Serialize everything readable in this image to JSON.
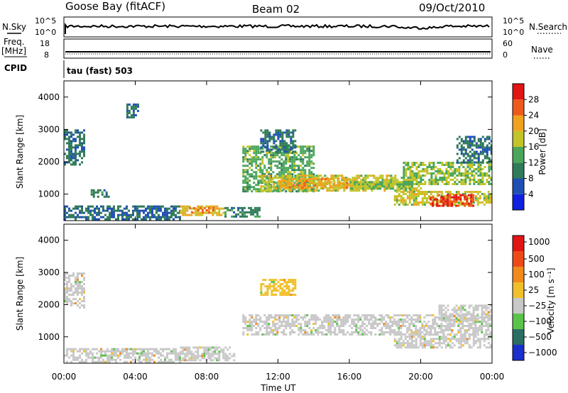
{
  "header": {
    "station": "Goose Bay (fitACF)",
    "beam": "Beam 02",
    "date": "09/Oct/2010"
  },
  "top_panels": {
    "nsky_label": "N.Sky",
    "nsky_ticks": [
      "10^5",
      "10^0"
    ],
    "nsearch_label": "N.Search",
    "nsearch_ticks": [
      "10^5",
      "10^0"
    ],
    "freq_label_1": "Freq.",
    "freq_label_2": "[MHz]",
    "freq_ticks": [
      "18",
      "8"
    ],
    "nave_label": "Nave",
    "nave_ticks": [
      "60",
      "0"
    ],
    "cpid_label": "CPID",
    "cpid_value": "tau (fast) 503"
  },
  "chart_data": [
    {
      "type": "heatmap",
      "quantity": "Power",
      "ylabel": "Slant Range [km]",
      "y_ticks": [
        "1000",
        "2000",
        "3000",
        "4000"
      ],
      "ylim": [
        180,
        4500
      ],
      "xlim": [
        0,
        24
      ],
      "colorbar": {
        "label": "Power [dB]",
        "ticks": [
          "4",
          "8",
          "12",
          "16",
          "20",
          "24",
          "28"
        ],
        "range": [
          0,
          32
        ],
        "colors": [
          "#1020e0",
          "#1e4fb4",
          "#2f7a58",
          "#49a65a",
          "#c2c428",
          "#f0a21e",
          "#ee5a1c",
          "#e21414"
        ]
      },
      "regions": [
        {
          "t": [
            0.0,
            1.1
          ],
          "r": [
            1900,
            3000
          ],
          "level": 9
        },
        {
          "t": [
            1.5,
            2.5
          ],
          "r": [
            950,
            1150
          ],
          "level": 10
        },
        {
          "t": [
            3.5,
            4.2
          ],
          "r": [
            3400,
            3800
          ],
          "level": 8
        },
        {
          "t": [
            0.0,
            6.5
          ],
          "r": [
            200,
            650
          ],
          "level": 8
        },
        {
          "t": [
            6.5,
            9.0
          ],
          "r": [
            350,
            650
          ],
          "level": 20
        },
        {
          "t": [
            7.0,
            8.5
          ],
          "r": [
            450,
            600
          ],
          "level": 26
        },
        {
          "t": [
            9.0,
            11.0
          ],
          "r": [
            300,
            600
          ],
          "level": 10
        },
        {
          "t": [
            10.0,
            14.0
          ],
          "r": [
            1100,
            2500
          ],
          "level": 14
        },
        {
          "t": [
            11.0,
            20.0
          ],
          "r": [
            1100,
            1600
          ],
          "level": 18
        },
        {
          "t": [
            12.0,
            16.0
          ],
          "r": [
            1200,
            1500
          ],
          "level": 22
        },
        {
          "t": [
            16.0,
            19.5
          ],
          "r": [
            1200,
            1400
          ],
          "level": 16
        },
        {
          "t": [
            19.0,
            24.0
          ],
          "r": [
            1300,
            2000
          ],
          "level": 16
        },
        {
          "t": [
            18.5,
            24.0
          ],
          "r": [
            700,
            1100
          ],
          "level": 18
        },
        {
          "t": [
            20.5,
            23.0
          ],
          "r": [
            650,
            1000
          ],
          "level": 28
        },
        {
          "t": [
            22.0,
            24.0
          ],
          "r": [
            2000,
            2800
          ],
          "level": 9
        },
        {
          "t": [
            11.0,
            13.0
          ],
          "r": [
            2300,
            3000
          ],
          "level": 9
        }
      ]
    },
    {
      "type": "heatmap",
      "quantity": "Velocity",
      "ylabel": "Slant Range [km]",
      "xlabel": "Time UT",
      "x_ticks": [
        "00:00",
        "04:00",
        "08:00",
        "12:00",
        "16:00",
        "20:00",
        "00:00"
      ],
      "y_ticks": [
        "1000",
        "2000",
        "3000",
        "4000"
      ],
      "ylim": [
        180,
        4500
      ],
      "xlim": [
        0,
        24
      ],
      "colorbar": {
        "label": "Velocity [m s⁻¹]",
        "ticks": [
          "1000",
          "500",
          "100",
          "25",
          "−25",
          "−100",
          "−500",
          "−1000"
        ],
        "colors": [
          "#1a2fcc",
          "#2b6e63",
          "#5ac44a",
          "#c8c8c8",
          "#f0c02a",
          "#f28a1c",
          "#ee4a18",
          "#e21414"
        ]
      },
      "regions": [
        {
          "t": [
            0.0,
            1.1
          ],
          "r": [
            1900,
            3000
          ],
          "cls": 3
        },
        {
          "t": [
            0.0,
            6.5
          ],
          "r": [
            200,
            650
          ],
          "cls": 3
        },
        {
          "t": [
            6.5,
            9.5
          ],
          "r": [
            250,
            700
          ],
          "cls": 3
        },
        {
          "t": [
            10.0,
            24.0
          ],
          "r": [
            1100,
            1700
          ],
          "cls": 3
        },
        {
          "t": [
            18.5,
            24.0
          ],
          "r": [
            700,
            1100
          ],
          "cls": 3
        },
        {
          "t": [
            21.0,
            24.0
          ],
          "r": [
            1500,
            2000
          ],
          "cls": 3
        },
        {
          "t": [
            11.0,
            13.0
          ],
          "r": [
            2300,
            2800
          ],
          "cls": 4
        }
      ]
    }
  ]
}
